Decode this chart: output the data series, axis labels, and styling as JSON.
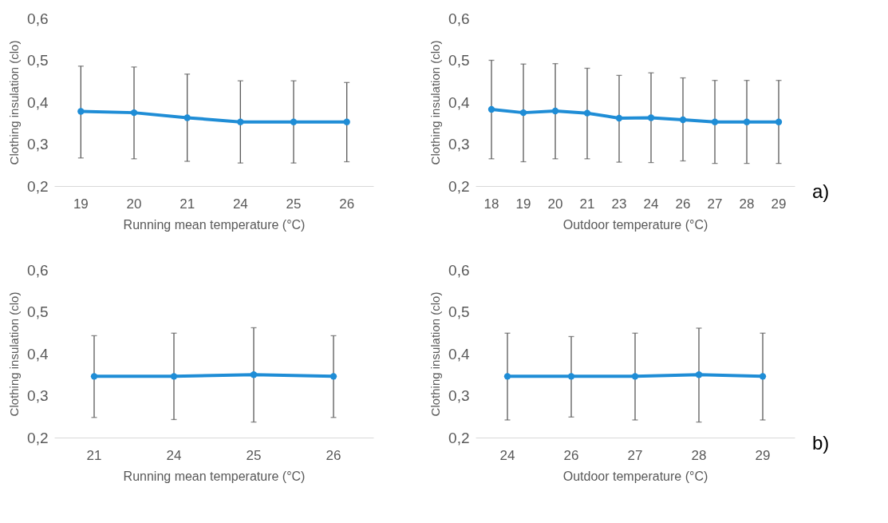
{
  "chart_data": [
    {
      "type": "line",
      "xlabel": "Running mean temperature (°C)",
      "ylabel": "Clothing insulation (clo)",
      "categories": [
        "19",
        "20",
        "21",
        "24",
        "25",
        "26"
      ],
      "ylim": [
        0.2,
        0.6
      ],
      "yticks": [
        {
          "value": 0.2,
          "label": "0,2"
        },
        {
          "value": 0.3,
          "label": "0,3"
        },
        {
          "value": 0.4,
          "label": "0,4"
        },
        {
          "value": 0.5,
          "label": "0,5"
        },
        {
          "value": 0.6,
          "label": "0,6"
        }
      ],
      "marker": "circle",
      "series": [
        {
          "color": "#1f8dd6",
          "values": [
            0.378,
            0.375,
            0.363,
            0.353,
            0.353,
            0.353
          ],
          "errors": [
            [
              0.267,
              0.486
            ],
            [
              0.265,
              0.484
            ],
            [
              0.259,
              0.467
            ],
            [
              0.255,
              0.451
            ],
            [
              0.255,
              0.451
            ],
            [
              0.258,
              0.447
            ]
          ]
        }
      ]
    },
    {
      "type": "line",
      "xlabel": "Outdoor temperature (°C)",
      "ylabel": "Clothing insulation (clo)",
      "categories": [
        "18",
        "19",
        "20",
        "21",
        "23",
        "24",
        "26",
        "27",
        "28",
        "29"
      ],
      "ylim": [
        0.2,
        0.6
      ],
      "yticks": [
        {
          "value": 0.2,
          "label": "0,2"
        },
        {
          "value": 0.3,
          "label": "0,3"
        },
        {
          "value": 0.4,
          "label": "0,4"
        },
        {
          "value": 0.5,
          "label": "0,5"
        },
        {
          "value": 0.6,
          "label": "0,6"
        }
      ],
      "marker": "circle",
      "annotations": [
        "a)"
      ],
      "series": [
        {
          "color": "#1f8dd6",
          "values": [
            0.383,
            0.375,
            0.379,
            0.374,
            0.362,
            0.363,
            0.358,
            0.353,
            0.353,
            0.353
          ],
          "errors": [
            [
              0.265,
              0.5
            ],
            [
              0.258,
              0.491
            ],
            [
              0.265,
              0.492
            ],
            [
              0.265,
              0.481
            ],
            [
              0.257,
              0.464
            ],
            [
              0.256,
              0.47
            ],
            [
              0.26,
              0.458
            ],
            [
              0.254,
              0.452
            ],
            [
              0.254,
              0.452
            ],
            [
              0.254,
              0.452
            ]
          ]
        }
      ]
    },
    {
      "type": "line",
      "xlabel": "Running mean temperature (°C)",
      "ylabel": "Clothing insulation (clo)",
      "categories": [
        "21",
        "24",
        "25",
        "26"
      ],
      "ylim": [
        0.2,
        0.6
      ],
      "yticks": [
        {
          "value": 0.2,
          "label": "0,2"
        },
        {
          "value": 0.3,
          "label": "0,3"
        },
        {
          "value": 0.4,
          "label": "0,4"
        },
        {
          "value": 0.5,
          "label": "0,5"
        },
        {
          "value": 0.6,
          "label": "0,6"
        }
      ],
      "marker": "circle",
      "series": [
        {
          "color": "#1f8dd6",
          "values": [
            0.346,
            0.346,
            0.35,
            0.346
          ],
          "errors": [
            [
              0.248,
              0.443
            ],
            [
              0.243,
              0.449
            ],
            [
              0.237,
              0.462
            ],
            [
              0.248,
              0.443
            ]
          ]
        }
      ]
    },
    {
      "type": "line",
      "xlabel": "Outdoor temperature (°C)",
      "ylabel": "Clothing insulation (clo)",
      "categories": [
        "24",
        "26",
        "27",
        "28",
        "29"
      ],
      "ylim": [
        0.2,
        0.6
      ],
      "yticks": [
        {
          "value": 0.2,
          "label": "0,2"
        },
        {
          "value": 0.3,
          "label": "0,3"
        },
        {
          "value": 0.4,
          "label": "0,4"
        },
        {
          "value": 0.5,
          "label": "0,5"
        },
        {
          "value": 0.6,
          "label": "0,6"
        }
      ],
      "marker": "circle",
      "annotations": [
        "b)"
      ],
      "series": [
        {
          "color": "#1f8dd6",
          "values": [
            0.346,
            0.346,
            0.346,
            0.35,
            0.346
          ],
          "errors": [
            [
              0.242,
              0.449
            ],
            [
              0.249,
              0.441
            ],
            [
              0.242,
              0.449
            ],
            [
              0.237,
              0.461
            ],
            [
              0.242,
              0.449
            ]
          ]
        }
      ]
    }
  ]
}
